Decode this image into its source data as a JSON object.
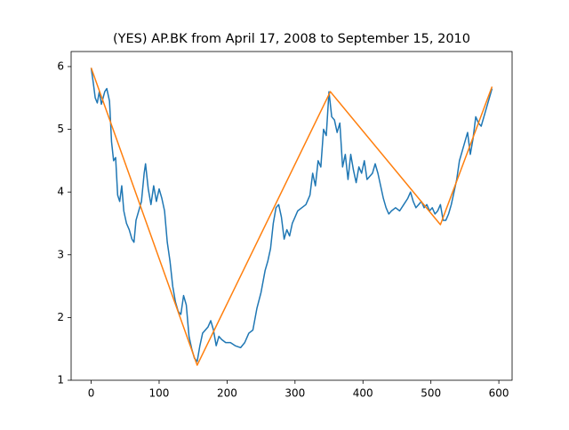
{
  "chart_data": {
    "type": "line",
    "title": "(YES) AP.BK from April 17, 2008 to September 15, 2010",
    "xlim": [
      -29.5,
      619.5
    ],
    "ylim": [
      1.0,
      6.24
    ],
    "xticks": [
      0,
      100,
      200,
      300,
      400,
      500,
      600
    ],
    "yticks": [
      1,
      2,
      3,
      4,
      5,
      6
    ],
    "series": [
      {
        "color": "#1f77b4",
        "x": [
          0,
          3,
          6,
          9,
          12,
          15,
          20,
          23,
          27,
          30,
          33,
          36,
          39,
          42,
          45,
          48,
          52,
          56,
          60,
          63,
          66,
          70,
          74,
          78,
          80,
          84,
          88,
          92,
          96,
          100,
          104,
          108,
          112,
          116,
          120,
          124,
          128,
          132,
          136,
          140,
          144,
          148,
          152,
          156,
          160,
          164,
          168,
          172,
          176,
          180,
          184,
          188,
          192,
          198,
          205,
          212,
          220,
          226,
          232,
          238,
          244,
          250,
          256,
          260,
          264,
          268,
          272,
          276,
          280,
          284,
          288,
          292,
          296,
          300,
          304,
          310,
          316,
          322,
          326,
          330,
          334,
          338,
          342,
          346,
          350,
          354,
          358,
          362,
          366,
          370,
          374,
          378,
          382,
          386,
          390,
          394,
          398,
          402,
          406,
          410,
          414,
          418,
          422,
          426,
          430,
          434,
          438,
          442,
          448,
          454,
          460,
          466,
          470,
          474,
          478,
          482,
          486,
          490,
          494,
          498,
          502,
          506,
          510,
          514,
          518,
          522,
          526,
          530,
          534,
          538,
          542,
          546,
          550,
          554,
          558,
          562,
          566,
          570,
          574,
          578,
          582,
          586,
          590
        ],
        "values": [
          5.98,
          5.75,
          5.5,
          5.42,
          5.6,
          5.4,
          5.6,
          5.65,
          5.45,
          4.8,
          4.5,
          4.55,
          3.95,
          3.85,
          4.1,
          3.7,
          3.5,
          3.4,
          3.25,
          3.2,
          3.55,
          3.7,
          3.85,
          4.3,
          4.45,
          4.05,
          3.8,
          4.1,
          3.85,
          4.05,
          3.9,
          3.7,
          3.2,
          2.9,
          2.5,
          2.25,
          2.1,
          2.05,
          2.35,
          2.2,
          1.7,
          1.5,
          1.35,
          1.3,
          1.55,
          1.75,
          1.8,
          1.85,
          1.95,
          1.8,
          1.55,
          1.7,
          1.65,
          1.6,
          1.6,
          1.55,
          1.52,
          1.6,
          1.75,
          1.8,
          2.15,
          2.4,
          2.75,
          2.9,
          3.1,
          3.5,
          3.75,
          3.8,
          3.6,
          3.25,
          3.4,
          3.3,
          3.5,
          3.6,
          3.7,
          3.75,
          3.8,
          3.95,
          4.3,
          4.1,
          4.5,
          4.4,
          5.0,
          4.9,
          5.6,
          5.2,
          5.15,
          4.95,
          5.1,
          4.4,
          4.6,
          4.2,
          4.6,
          4.35,
          4.15,
          4.4,
          4.3,
          4.5,
          4.2,
          4.25,
          4.3,
          4.45,
          4.3,
          4.1,
          3.9,
          3.75,
          3.65,
          3.7,
          3.75,
          3.7,
          3.8,
          3.9,
          4.0,
          3.85,
          3.75,
          3.8,
          3.85,
          3.75,
          3.8,
          3.7,
          3.75,
          3.65,
          3.7,
          3.8,
          3.55,
          3.55,
          3.65,
          3.8,
          4.0,
          4.2,
          4.5,
          4.65,
          4.8,
          4.95,
          4.6,
          4.85,
          5.2,
          5.1,
          5.05,
          5.2,
          5.35,
          5.5,
          5.65
        ]
      },
      {
        "color": "#ff7f0e",
        "x": [
          0,
          156,
          352,
          514,
          590
        ],
        "values": [
          5.98,
          1.24,
          5.6,
          3.48,
          5.68
        ]
      }
    ]
  }
}
